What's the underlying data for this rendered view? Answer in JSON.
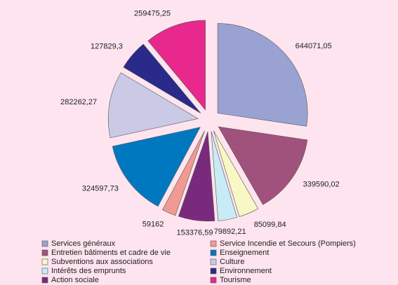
{
  "chart_data": {
    "type": "pie",
    "categories": [
      "Services généraux",
      "Entretien bâtiments et cadre de vie",
      "Subventions aux associations",
      "Intérêts des emprunts",
      "Action sociale",
      "Service Incendie et Secours (Pompiers)",
      "Enseignement",
      "Culture",
      "Environnement",
      "Tourisme"
    ],
    "values": [
      644071.05,
      339590.02,
      85099.84,
      79892.21,
      153376.59,
      59162,
      324597.73,
      282262.27,
      127829.3,
      259475.25
    ],
    "value_labels": [
      "644071,05",
      "339590,02",
      "85099,84",
      "79892,21",
      "153376,59",
      "59162",
      "324597,73",
      "282262,27",
      "127829,3",
      "259475,25"
    ],
    "colors": [
      "#9aa2d2",
      "#a0527c",
      "#f8f8c6",
      "#c8ecf6",
      "#7a2a7c",
      "#f09a92",
      "#0078c0",
      "#cacae6",
      "#2a2a8a",
      "#e8288c"
    ]
  }
}
